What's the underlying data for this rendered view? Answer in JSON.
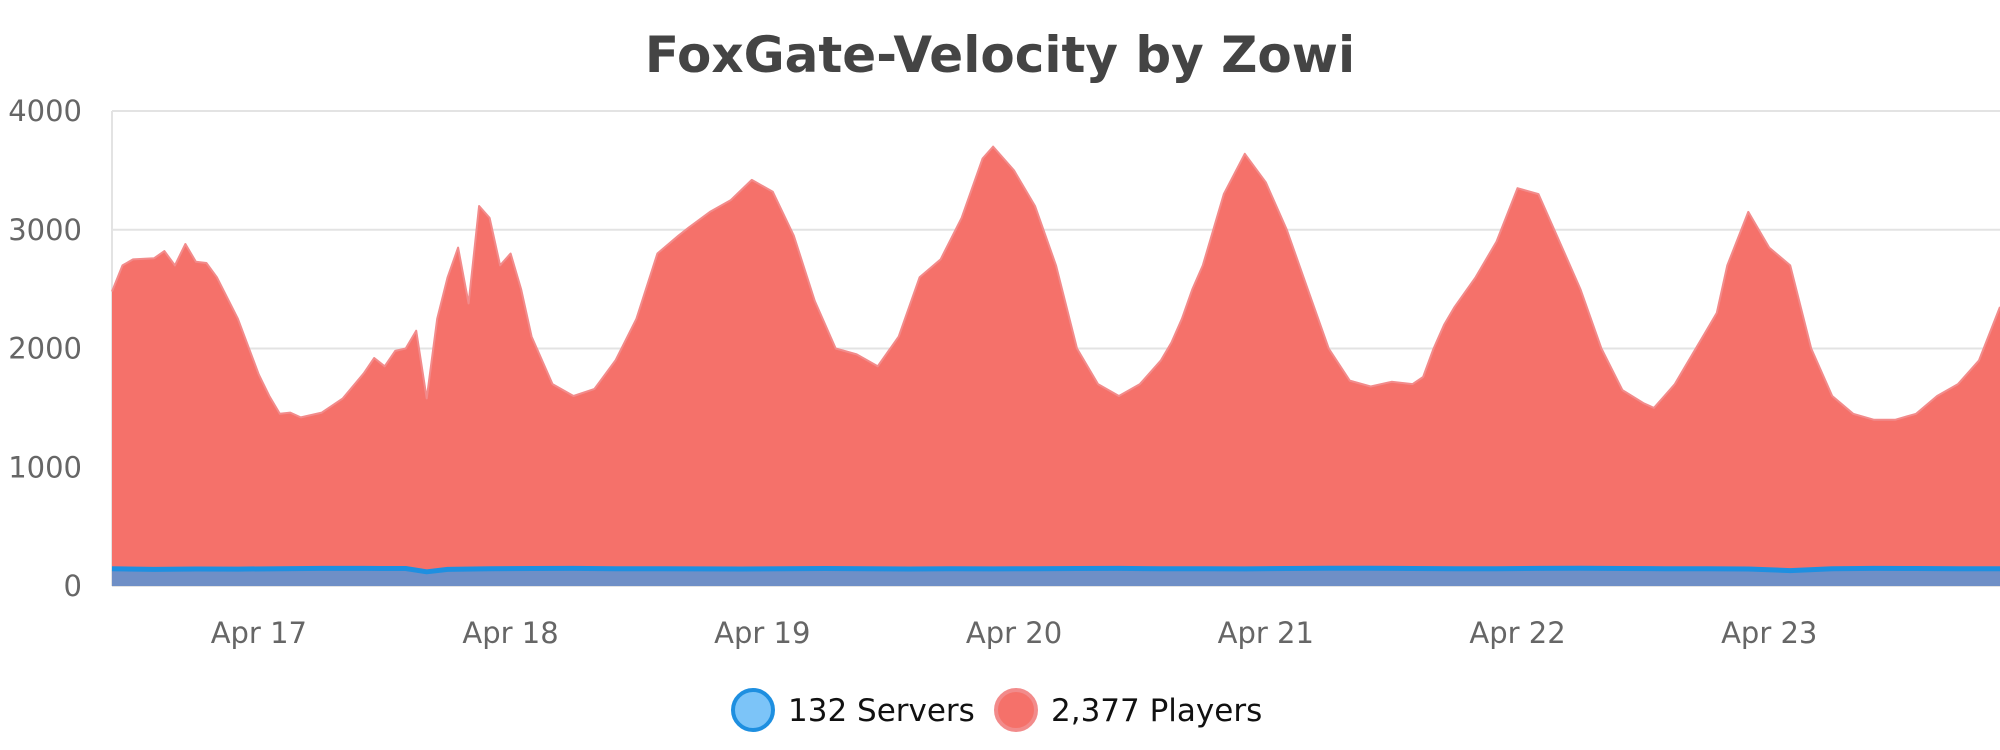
{
  "chart_data": {
    "type": "area",
    "title": "FoxGate-Velocity by Zowi",
    "xlabel": "",
    "ylabel": "",
    "ylim": [
      0,
      4000
    ],
    "xlim": [
      "2024-04-16 10:00",
      "2024-04-23 22:00"
    ],
    "y_ticks": [
      "0",
      "1000",
      "2000",
      "3000",
      "4000"
    ],
    "x_tick_labels": [
      "Apr 17",
      "Apr 18",
      "Apr 19",
      "Apr 20",
      "Apr 21",
      "Apr 22",
      "Apr 23"
    ],
    "x_tick_values": [
      "2024-04-17 00:00",
      "2024-04-18 00:00",
      "2024-04-19 00:00",
      "2024-04-20 00:00",
      "2024-04-21 00:00",
      "2024-04-22 00:00",
      "2024-04-23 00:00"
    ],
    "grid": true,
    "legend_position": "bottom-center",
    "series": [
      {
        "name": "132 Servers",
        "color": "#1e8fe0",
        "fill": "#6f8fc6",
        "marker_fill": "#7cc4f8",
        "x": [
          "2024-04-16 10:00",
          "2024-04-16 14:00",
          "2024-04-16 18:00",
          "2024-04-16 22:00",
          "2024-04-17 02:00",
          "2024-04-17 06:00",
          "2024-04-17 10:00",
          "2024-04-17 14:00",
          "2024-04-17 16:00",
          "2024-04-17 18:00",
          "2024-04-17 22:00",
          "2024-04-18 02:00",
          "2024-04-18 06:00",
          "2024-04-18 10:00",
          "2024-04-18 14:00",
          "2024-04-18 18:00",
          "2024-04-18 22:00",
          "2024-04-19 02:00",
          "2024-04-19 06:00",
          "2024-04-19 10:00",
          "2024-04-19 14:00",
          "2024-04-19 18:00",
          "2024-04-19 22:00",
          "2024-04-20 02:00",
          "2024-04-20 06:00",
          "2024-04-20 10:00",
          "2024-04-20 14:00",
          "2024-04-20 18:00",
          "2024-04-20 22:00",
          "2024-04-21 02:00",
          "2024-04-21 06:00",
          "2024-04-21 10:00",
          "2024-04-21 14:00",
          "2024-04-21 18:00",
          "2024-04-21 22:00",
          "2024-04-22 02:00",
          "2024-04-22 06:00",
          "2024-04-22 10:00",
          "2024-04-22 14:00",
          "2024-04-22 18:00",
          "2024-04-22 22:00",
          "2024-04-23 02:00",
          "2024-04-23 06:00",
          "2024-04-23 10:00",
          "2024-04-23 14:00",
          "2024-04-23 18:00",
          "2024-04-23 22:00"
        ],
        "values": [
          145,
          140,
          143,
          142,
          146,
          148,
          148,
          147,
          120,
          140,
          145,
          147,
          148,
          146,
          145,
          144,
          143,
          145,
          147,
          146,
          143,
          145,
          144,
          146,
          147,
          148,
          146,
          145,
          144,
          147,
          149,
          150,
          147,
          145,
          146,
          148,
          149,
          147,
          146,
          145,
          143,
          130,
          145,
          148,
          147,
          146,
          145
        ]
      },
      {
        "name": "2,377 Players",
        "color": "#f28b8b",
        "fill": "#f5716a",
        "marker_fill": "#f5716a",
        "x": [
          "2024-04-16 10:00",
          "2024-04-16 11:00",
          "2024-04-16 12:00",
          "2024-04-16 14:00",
          "2024-04-16 15:00",
          "2024-04-16 16:00",
          "2024-04-16 17:00",
          "2024-04-16 18:00",
          "2024-04-16 19:00",
          "2024-04-16 20:00",
          "2024-04-16 22:00",
          "2024-04-17 00:00",
          "2024-04-17 01:00",
          "2024-04-17 02:00",
          "2024-04-17 03:00",
          "2024-04-17 04:00",
          "2024-04-17 06:00",
          "2024-04-17 08:00",
          "2024-04-17 10:00",
          "2024-04-17 11:00",
          "2024-04-17 12:00",
          "2024-04-17 13:00",
          "2024-04-17 14:00",
          "2024-04-17 15:00",
          "2024-04-17 16:00",
          "2024-04-17 17:00",
          "2024-04-17 18:00",
          "2024-04-17 19:00",
          "2024-04-17 20:00",
          "2024-04-17 21:00",
          "2024-04-17 22:00",
          "2024-04-17 23:00",
          "2024-04-18 00:00",
          "2024-04-18 01:00",
          "2024-04-18 02:00",
          "2024-04-18 04:00",
          "2024-04-18 06:00",
          "2024-04-18 08:00",
          "2024-04-18 10:00",
          "2024-04-18 12:00",
          "2024-04-18 14:00",
          "2024-04-18 16:00",
          "2024-04-18 17:00",
          "2024-04-18 19:00",
          "2024-04-18 21:00",
          "2024-04-18 23:00",
          "2024-04-19 01:00",
          "2024-04-19 03:00",
          "2024-04-19 05:00",
          "2024-04-19 07:00",
          "2024-04-19 09:00",
          "2024-04-19 11:00",
          "2024-04-19 13:00",
          "2024-04-19 15:00",
          "2024-04-19 17:00",
          "2024-04-19 19:00",
          "2024-04-19 21:00",
          "2024-04-19 22:00",
          "2024-04-20 00:00",
          "2024-04-20 02:00",
          "2024-04-20 04:00",
          "2024-04-20 06:00",
          "2024-04-20 08:00",
          "2024-04-20 10:00",
          "2024-04-20 12:00",
          "2024-04-20 14:00",
          "2024-04-20 15:00",
          "2024-04-20 16:00",
          "2024-04-20 17:00",
          "2024-04-20 18:00",
          "2024-04-20 20:00",
          "2024-04-20 22:00",
          "2024-04-21 00:00",
          "2024-04-21 02:00",
          "2024-04-21 04:00",
          "2024-04-21 06:00",
          "2024-04-21 08:00",
          "2024-04-21 10:00",
          "2024-04-21 12:00",
          "2024-04-21 14:00",
          "2024-04-21 15:00",
          "2024-04-21 16:00",
          "2024-04-21 17:00",
          "2024-04-21 18:00",
          "2024-04-21 20:00",
          "2024-04-21 22:00",
          "2024-04-22 00:00",
          "2024-04-22 02:00",
          "2024-04-22 04:00",
          "2024-04-22 06:00",
          "2024-04-22 08:00",
          "2024-04-22 10:00",
          "2024-04-22 12:00",
          "2024-04-22 13:00",
          "2024-04-22 14:00",
          "2024-04-22 15:00",
          "2024-04-22 16:00",
          "2024-04-22 17:00",
          "2024-04-22 18:00",
          "2024-04-22 19:00",
          "2024-04-22 20:00",
          "2024-04-22 22:00",
          "2024-04-23 00:00",
          "2024-04-23 02:00",
          "2024-04-23 04:00",
          "2024-04-23 06:00",
          "2024-04-23 08:00",
          "2024-04-23 10:00",
          "2024-04-23 12:00",
          "2024-04-23 14:00",
          "2024-04-23 16:00",
          "2024-04-23 18:00",
          "2024-04-23 20:00",
          "2024-04-23 22:00"
        ],
        "values": [
          2480,
          2700,
          2750,
          2760,
          2820,
          2700,
          2880,
          2730,
          2720,
          2600,
          2250,
          1780,
          1600,
          1450,
          1460,
          1420,
          1460,
          1580,
          1790,
          1920,
          1850,
          1980,
          2000,
          2150,
          1580,
          2250,
          2600,
          2850,
          2380,
          3200,
          3100,
          2700,
          2800,
          2500,
          2100,
          1700,
          1600,
          1660,
          1900,
          2250,
          2800,
          2950,
          3020,
          3150,
          3250,
          3420,
          3320,
          2950,
          2400,
          2000,
          1950,
          1850,
          2100,
          2600,
          2750,
          3100,
          3600,
          3700,
          3500,
          3200,
          2700,
          2000,
          1700,
          1600,
          1700,
          1900,
          2050,
          2250,
          2500,
          2700,
          3300,
          3640,
          3400,
          3000,
          2500,
          2000,
          1730,
          1680,
          1720,
          1700,
          1760,
          2000,
          2200,
          2350,
          2600,
          2900,
          3350,
          3300,
          2900,
          2500,
          2000,
          1650,
          1540,
          1500,
          1600,
          1700,
          1850,
          2000,
          2150,
          2300,
          2700,
          3150,
          2850,
          2700,
          2000,
          1600,
          1450,
          1400,
          1400,
          1450,
          1600,
          1700,
          1900,
          2350
        ]
      }
    ]
  },
  "legend": [
    {
      "label": "132 Servers"
    },
    {
      "label": "2,377 Players"
    }
  ]
}
